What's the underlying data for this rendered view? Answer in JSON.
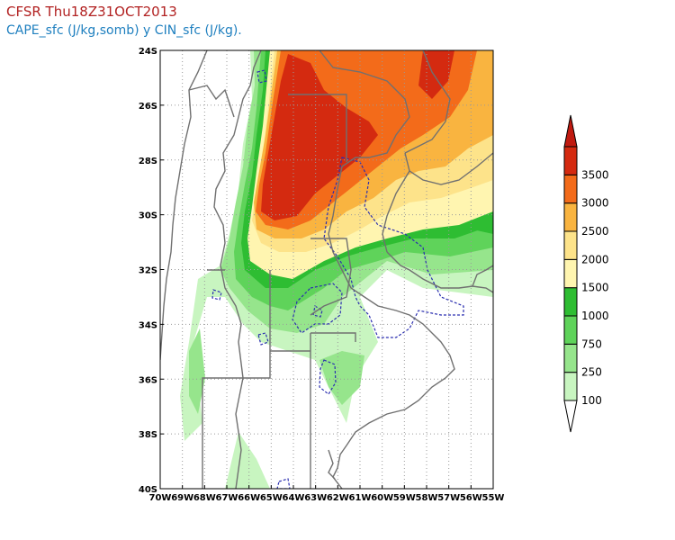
{
  "header": {
    "title": "CFSR Thu18Z31OCT2013",
    "subtitle": "CAPE_sfc (J/kg,somb) y CIN_sfc (J/kg)."
  },
  "axes": {
    "lon_range": [
      -70,
      -55
    ],
    "lat_range": [
      -40,
      -24
    ],
    "x_ticks": [
      "70W",
      "69W",
      "68W",
      "67W",
      "66W",
      "65W",
      "64W",
      "63W",
      "62W",
      "61W",
      "60W",
      "59W",
      "58W",
      "57W",
      "56W",
      "55W"
    ],
    "y_ticks": [
      "24S",
      "26S",
      "28S",
      "30S",
      "32S",
      "34S",
      "36S",
      "38S",
      "40S"
    ],
    "grid": true
  },
  "colorbar": {
    "labels": [
      "100",
      "250",
      "750",
      "1000",
      "1500",
      "2000",
      "2500",
      "3000",
      "3500"
    ],
    "colors": [
      "#c8f5c0",
      "#96e58c",
      "#5fd35a",
      "#2ebd32",
      "#fff5b0",
      "#fde38a",
      "#f9b440",
      "#f36b1a",
      "#d42a10"
    ],
    "top_color": "#c01a10"
  },
  "legend_fields": {
    "cape": "CAPE_sfc (J/kg,somb)",
    "cin": "CIN_sfc (J/kg)"
  }
}
